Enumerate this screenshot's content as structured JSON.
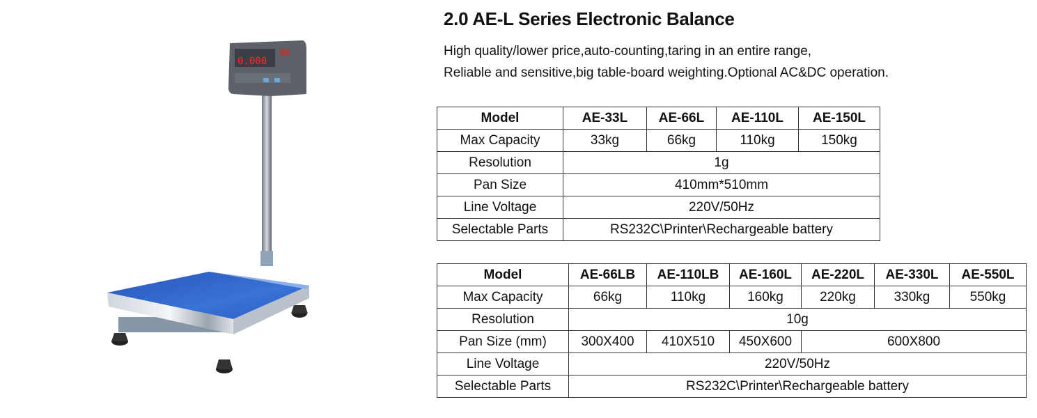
{
  "title": "2.0 AE-L Series Electronic Balance",
  "description": [
    "High quality/lower price,auto-counting,taring in an entire range,",
    "Reliable and sensitive,big table-board weighting.Optional AC&DC operation."
  ],
  "product_image": {
    "display_reading": "0.000",
    "pan_color": "#2f5fc4"
  },
  "table1": {
    "headers": [
      "Model",
      "AE-33L",
      "AE-66L",
      "AE-110L",
      "AE-150L"
    ],
    "max_capacity": {
      "label": "Max Capacity",
      "values": [
        "33kg",
        "66kg",
        "110kg",
        "150kg"
      ]
    },
    "resolution": {
      "label": "Resolution",
      "value": "1g"
    },
    "pan_size": {
      "label": "Pan Size",
      "value": "410mm*510mm"
    },
    "line_voltage": {
      "label": "Line Voltage",
      "value": "220V/50Hz"
    },
    "selectable_parts": {
      "label": "Selectable Parts",
      "value": "RS232C\\Printer\\Rechargeable battery"
    }
  },
  "table2": {
    "headers": [
      "Model",
      "AE-66LB",
      "AE-110LB",
      "AE-160L",
      "AE-220L",
      "AE-330L",
      "AE-550L"
    ],
    "max_capacity": {
      "label": "Max Capacity",
      "values": [
        "66kg",
        "110kg",
        "160kg",
        "220kg",
        "330kg",
        "550kg"
      ]
    },
    "resolution": {
      "label": "Resolution",
      "value": "10g"
    },
    "pan_size": {
      "label": "Pan Size (mm)",
      "values": [
        "300X400",
        "410X510",
        "450X600",
        "600X800"
      ]
    },
    "line_voltage": {
      "label": "Line Voltage",
      "value": "220V/50Hz"
    },
    "selectable_parts": {
      "label": "Selectable Parts",
      "value": "RS232C\\Printer\\Rechargeable battery"
    }
  }
}
